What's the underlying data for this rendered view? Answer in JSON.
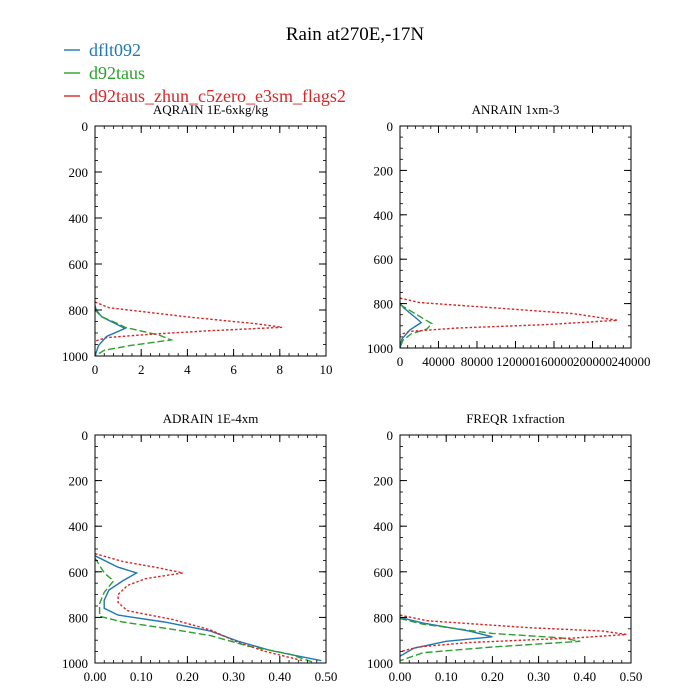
{
  "figure": {
    "title": "Rain at270E,-17N"
  },
  "legend": {
    "placement": "top-left",
    "entries": [
      {
        "name": "dflt092",
        "color": "#1f77b4",
        "dash": "solid"
      },
      {
        "name": "d92taus",
        "color": "#2ca02c",
        "dash": "dashed"
      },
      {
        "name": "d92taus_zhun_c5zero_e3sm_flags2",
        "color": "#d62728",
        "dash": "dotted"
      }
    ]
  },
  "chart_data": [
    {
      "id": "aqrain",
      "type": "line",
      "title": "AQRAIN  1E-6xkg/kg",
      "xlim": [
        0,
        10
      ],
      "ylim": [
        1000,
        0
      ],
      "xticks": [
        "0",
        "2",
        "4",
        "6",
        "8",
        "10"
      ],
      "xtick_values": [
        0,
        2,
        4,
        6,
        8,
        10
      ],
      "yticks": [
        "0",
        "200",
        "400",
        "600",
        "800",
        "1000"
      ],
      "ytick_values": [
        0,
        200,
        400,
        600,
        800,
        1000
      ],
      "series": [
        {
          "name": "dflt092",
          "points": [
            [
              0,
              780
            ],
            [
              0.05,
              800
            ],
            [
              0.3,
              830
            ],
            [
              1.1,
              870
            ],
            [
              1.3,
              880
            ],
            [
              0.5,
              915
            ],
            [
              0.15,
              955
            ],
            [
              0,
              1000
            ]
          ]
        },
        {
          "name": "d92taus",
          "points": [
            [
              0,
              800
            ],
            [
              0.3,
              830
            ],
            [
              1.0,
              860
            ],
            [
              1.3,
              875
            ],
            [
              2.8,
              910
            ],
            [
              3.3,
              930
            ],
            [
              1.5,
              955
            ],
            [
              0.4,
              975
            ],
            [
              0,
              1000
            ]
          ]
        },
        {
          "name": "d92taus_zhun_c5zero_e3sm_flags2",
          "points": [
            [
              0,
              765
            ],
            [
              0.6,
              790
            ],
            [
              4.0,
              830
            ],
            [
              7.0,
              860
            ],
            [
              8.1,
              875
            ],
            [
              5.0,
              890
            ],
            [
              2.5,
              905
            ],
            [
              0.5,
              920
            ],
            [
              0,
              935
            ]
          ]
        }
      ]
    },
    {
      "id": "anrain",
      "type": "line",
      "title": "ANRAIN  1xm-3",
      "xlim": [
        0,
        240000
      ],
      "ylim": [
        1000,
        0
      ],
      "xticks": [
        "0",
        "40000",
        "80000",
        "120000",
        "160000",
        "200000",
        "240000"
      ],
      "xtick_values": [
        0,
        40000,
        80000,
        120000,
        160000,
        200000,
        240000
      ],
      "yticks": [
        "0",
        "200",
        "400",
        "600",
        "800",
        "1000"
      ],
      "ytick_values": [
        0,
        200,
        400,
        600,
        800,
        1000
      ],
      "series": [
        {
          "name": "dflt092",
          "points": [
            [
              0,
              800
            ],
            [
              4000,
              820
            ],
            [
              18000,
              870
            ],
            [
              22000,
              885
            ],
            [
              10000,
              920
            ],
            [
              2000,
              960
            ],
            [
              0,
              1000
            ]
          ]
        },
        {
          "name": "d92taus",
          "points": [
            [
              0,
              805
            ],
            [
              10000,
              830
            ],
            [
              25000,
              870
            ],
            [
              33000,
              890
            ],
            [
              28000,
              915
            ],
            [
              12000,
              935
            ],
            [
              3000,
              965
            ],
            [
              0,
              1000
            ]
          ]
        },
        {
          "name": "d92taus_zhun_c5zero_e3sm_flags2",
          "points": [
            [
              0,
              775
            ],
            [
              20000,
              795
            ],
            [
              100000,
              820
            ],
            [
              180000,
              845
            ],
            [
              226000,
              875
            ],
            [
              150000,
              895
            ],
            [
              60000,
              910
            ],
            [
              10000,
              925
            ],
            [
              0,
              940
            ]
          ]
        }
      ]
    },
    {
      "id": "adrain",
      "type": "line",
      "title": "ADRAIN  1E-4xm",
      "xlim": [
        0,
        0.5
      ],
      "ylim": [
        1000,
        0
      ],
      "xticks": [
        "0.00",
        "0.10",
        "0.20",
        "0.30",
        "0.40",
        "0.50"
      ],
      "xtick_values": [
        0,
        0.1,
        0.2,
        0.3,
        0.4,
        0.5
      ],
      "yticks": [
        "0",
        "200",
        "400",
        "600",
        "800",
        "1000"
      ],
      "ytick_values": [
        0,
        200,
        400,
        600,
        800,
        1000
      ],
      "series": [
        {
          "name": "dflt092",
          "points": [
            [
              0,
              530
            ],
            [
              0.05,
              580
            ],
            [
              0.09,
              605
            ],
            [
              0.06,
              640
            ],
            [
              0.03,
              680
            ],
            [
              0.02,
              725
            ],
            [
              0.02,
              760
            ],
            [
              0.05,
              790
            ],
            [
              0.15,
              820
            ],
            [
              0.25,
              860
            ],
            [
              0.31,
              905
            ],
            [
              0.38,
              945
            ],
            [
              0.49,
              990
            ]
          ]
        },
        {
          "name": "d92taus",
          "points": [
            [
              0,
              540
            ],
            [
              0.02,
              605
            ],
            [
              0.04,
              640
            ],
            [
              0.02,
              690
            ],
            [
              0.01,
              740
            ],
            [
              0.01,
              795
            ],
            [
              0.06,
              820
            ],
            [
              0.16,
              850
            ],
            [
              0.25,
              880
            ],
            [
              0.33,
              925
            ],
            [
              0.42,
              960
            ],
            [
              0.47,
              995
            ]
          ]
        },
        {
          "name": "d92taus_zhun_c5zero_e3sm_flags2",
          "points": [
            [
              0,
              520
            ],
            [
              0.06,
              555
            ],
            [
              0.13,
              580
            ],
            [
              0.19,
              605
            ],
            [
              0.11,
              630
            ],
            [
              0.07,
              660
            ],
            [
              0.05,
              700
            ],
            [
              0.05,
              735
            ],
            [
              0.07,
              770
            ],
            [
              0.17,
              810
            ],
            [
              0.25,
              855
            ],
            [
              0.31,
              910
            ],
            [
              0.37,
              950
            ],
            [
              0.45,
              990
            ]
          ]
        }
      ]
    },
    {
      "id": "freqr",
      "type": "line",
      "title": "FREQR  1xfraction",
      "xlim": [
        0,
        0.5
      ],
      "ylim": [
        1000,
        0
      ],
      "xticks": [
        "0.00",
        "0.10",
        "0.20",
        "0.30",
        "0.40",
        "0.50"
      ],
      "xtick_values": [
        0,
        0.1,
        0.2,
        0.3,
        0.4,
        0.5
      ],
      "yticks": [
        "0",
        "200",
        "400",
        "600",
        "800",
        "1000"
      ],
      "ytick_values": [
        0,
        200,
        400,
        600,
        800,
        1000
      ],
      "series": [
        {
          "name": "dflt092",
          "points": [
            [
              0,
              800
            ],
            [
              0.05,
              825
            ],
            [
              0.15,
              860
            ],
            [
              0.2,
              885
            ],
            [
              0.1,
              905
            ],
            [
              0.03,
              935
            ],
            [
              0,
              970
            ]
          ]
        },
        {
          "name": "d92taus",
          "points": [
            [
              0,
              805
            ],
            [
              0.05,
              830
            ],
            [
              0.2,
              870
            ],
            [
              0.35,
              890
            ],
            [
              0.39,
              905
            ],
            [
              0.2,
              930
            ],
            [
              0.05,
              955
            ],
            [
              0,
              990
            ]
          ]
        },
        {
          "name": "d92taus_zhun_c5zero_e3sm_flags2",
          "points": [
            [
              0,
              790
            ],
            [
              0.06,
              815
            ],
            [
              0.28,
              845
            ],
            [
              0.44,
              860
            ],
            [
              0.49,
              875
            ],
            [
              0.38,
              890
            ],
            [
              0.15,
              910
            ],
            [
              0.04,
              930
            ],
            [
              0,
              950
            ]
          ]
        }
      ]
    }
  ]
}
